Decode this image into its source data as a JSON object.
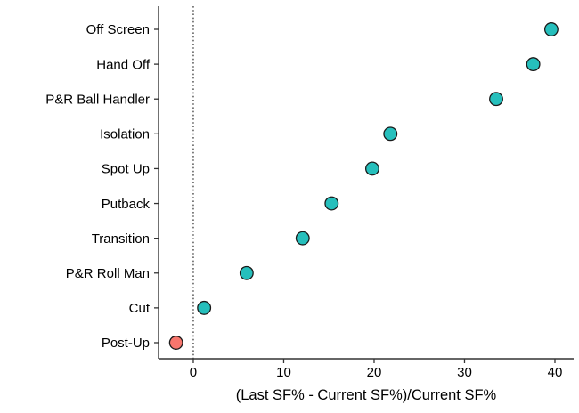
{
  "colors": {
    "teal": "#26BFBC",
    "red": "#F8766D",
    "point_stroke": "#1a1a1a",
    "axis_line": "#333333",
    "reference_line": "#1a1a1a",
    "text": "#000000",
    "background": "#ffffff"
  },
  "chart_data": {
    "type": "scatter",
    "subtype": "horizontal-dot-plot",
    "title": "",
    "xlabel": "(Last SF% - Current SF%)/Current SF%",
    "ylabel": "",
    "xlim": [
      -3.84,
      42.07
    ],
    "xticks": [
      0,
      10,
      20,
      30,
      40
    ],
    "grid": false,
    "legend": false,
    "reference_line": {
      "x": 0,
      "style": "dotted"
    },
    "categories": [
      "Off Screen",
      "Hand Off",
      "P&R Ball Handler",
      "Isolation",
      "Spot Up",
      "Putback",
      "Transition",
      "P&R Roll Man",
      "Cut",
      "Post-Up"
    ],
    "values": [
      39.6,
      37.6,
      33.5,
      21.8,
      19.8,
      15.3,
      12.1,
      5.9,
      1.2,
      -1.9
    ],
    "point_colors": [
      "teal",
      "teal",
      "teal",
      "teal",
      "teal",
      "teal",
      "teal",
      "teal",
      "teal",
      "red"
    ]
  }
}
